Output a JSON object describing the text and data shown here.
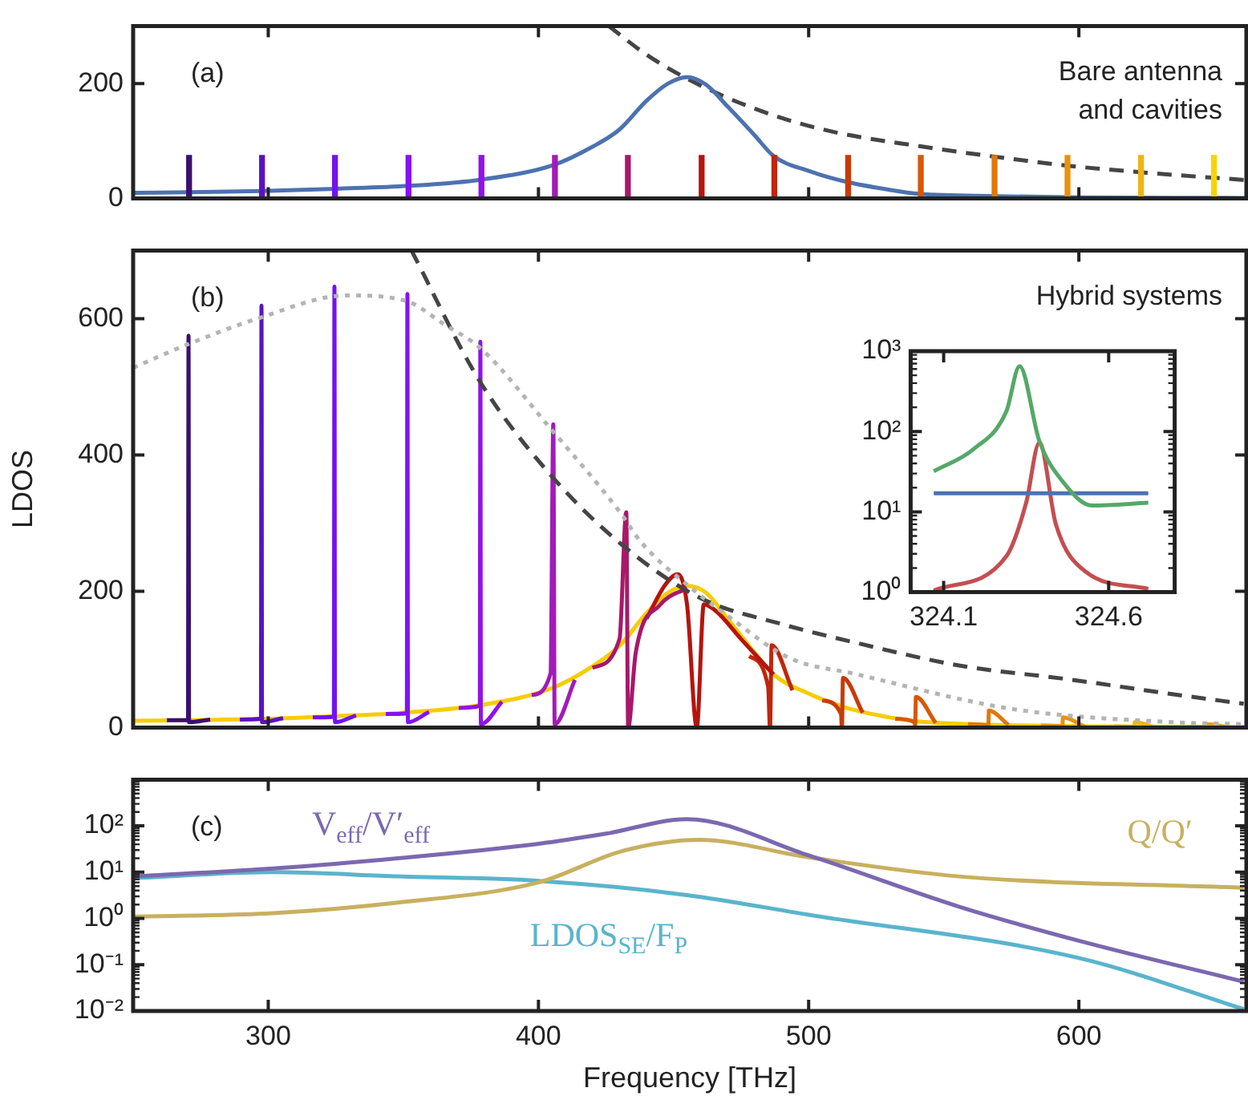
{
  "chart_data": [
    {
      "type": "line",
      "xlim": [
        250,
        662
      ],
      "xticks": [
        300,
        400,
        500,
        600
      ],
      "ylim": [
        0,
        300
      ],
      "yticks": [
        0,
        200
      ],
      "tick_labels": "y",
      "marker": "none",
      "annotations": [
        "(a)",
        "Bare antenna and cavities"
      ],
      "series": [
        {
          "type": "bar",
          "x": [
            270.7,
            297.7,
            324.7,
            351.9,
            378.9,
            406.1,
            433.1,
            460.4,
            487.3,
            514.6,
            541.5,
            568.8,
            595.8,
            623.0,
            650.0
          ],
          "values": [
            75,
            75,
            75,
            75,
            75,
            75,
            75,
            75,
            75,
            75,
            75,
            75,
            75,
            75,
            75
          ],
          "colors": [
            "#3b0f70",
            "#5b12c0",
            "#7412ee",
            "#8312f5",
            "#9212e8",
            "#a21bb8",
            "#a8186a",
            "#b5140e",
            "#c0260a",
            "#c93a06",
            "#d75806",
            "#e0780a",
            "#e8920e",
            "#f0b414",
            "#f7d400"
          ]
        },
        {
          "color": "#4c72b0",
          "x": [
            250,
            270,
            298,
            325,
            352,
            379,
            406,
            420,
            430,
            440,
            448,
            455,
            462,
            470,
            480,
            487,
            500,
            514,
            530,
            541,
            570,
            600,
            662
          ],
          "values": [
            10,
            11,
            13,
            17,
            22,
            33,
            59,
            90,
            120,
            170,
            200,
            211,
            198,
            160,
            110,
            74,
            48,
            29,
            15,
            8,
            4,
            2,
            1
          ]
        },
        {
          "color": "#454545",
          "line_style": "dashed",
          "x": [
            426,
            440,
            454,
            470,
            490,
            510,
            541,
            570,
            596,
            630,
            662
          ],
          "values": [
            300,
            250,
            211,
            175,
            140,
            115,
            91,
            72,
            57,
            43,
            32
          ]
        }
      ]
    },
    {
      "type": "line",
      "ylabel": "LDOS",
      "xlim": [
        250,
        662
      ],
      "xticks": [
        300,
        400,
        500,
        600
      ],
      "ylim": [
        0,
        700
      ],
      "yticks": [
        0,
        200,
        400,
        600
      ],
      "tick_labels": "y",
      "marker": "none",
      "annotations": [
        "(b)",
        "Hybrid systems"
      ],
      "series": [
        {
          "color": "#b4b4b4",
          "line_style": "dotted",
          "x": [
            250,
            270,
            296,
            329,
            351,
            365,
            379,
            404,
            430,
            438,
            458,
            468,
            493,
            517,
            576,
            635,
            662
          ],
          "values": [
            528,
            562,
            600,
            634,
            626,
            592,
            555,
            441,
            317,
            272,
            200,
            170,
            102,
            79,
            27,
            8,
            5
          ]
        },
        {
          "color": "#454545",
          "line_style": "dashed",
          "x": [
            353,
            378,
            404,
            431,
            460,
            490,
            517,
            556,
            596,
            635,
            661
          ],
          "values": [
            700,
            510,
            373,
            268,
            190,
            152,
            125,
            91,
            71,
            49,
            35
          ]
        },
        {
          "color": "#3b0f70",
          "x": [
            262.5,
            270.3,
            270.5,
            270.7,
            278.5
          ],
          "values": [
            11,
            11,
            575,
            8,
            12
          ]
        },
        {
          "color": "#5b12c0",
          "x": [
            289.5,
            297.3,
            297.5,
            297.7,
            305.5
          ],
          "values": [
            12,
            13,
            619,
            8,
            14
          ]
        },
        {
          "color": "#7412ee",
          "x": [
            316.5,
            324.3,
            324.5,
            324.7,
            332.5
          ],
          "values": [
            15,
            16,
            647,
            8,
            18
          ]
        },
        {
          "color": "#8312f5",
          "x": [
            343.5,
            351.3,
            351.5,
            351.7,
            359.5
          ],
          "values": [
            20,
            21,
            636,
            8,
            23
          ]
        },
        {
          "color": "#9212e8",
          "x": [
            370.5,
            378.3,
            378.5,
            378.7,
            386.5
          ],
          "values": [
            29,
            32,
            566,
            5,
            38
          ]
        },
        {
          "color": "#a21bb8",
          "x": [
            397.5,
            404.5,
            405.5,
            406,
            413.5
          ],
          "values": [
            48,
            80,
            445,
            5,
            70
          ]
        },
        {
          "color": "#a8186a",
          "x": [
            420,
            430,
            432.5,
            433.2,
            436,
            445,
            455
          ],
          "values": [
            88,
            130,
            316,
            0,
            110,
            180,
            205
          ]
        },
        {
          "color": "#b5140e",
          "x": [
            440,
            447,
            451.5,
            455,
            458.6,
            461.2,
            466,
            475,
            487
          ],
          "values": [
            160,
            210,
            225,
            180,
            0,
            181,
            170,
            130,
            78
          ]
        },
        {
          "color": "#c0260a",
          "x": [
            478,
            485,
            485.7,
            486.3,
            494
          ],
          "values": [
            105,
            60,
            0,
            121,
            55
          ]
        },
        {
          "color": "#c93a06",
          "x": [
            505,
            512,
            512.3,
            512.7,
            520
          ],
          "values": [
            40,
            20,
            0,
            73,
            22
          ]
        },
        {
          "color": "#d75806",
          "x": [
            532,
            539.2,
            539.4,
            539.7,
            547
          ],
          "values": [
            13,
            8,
            2,
            45,
            7
          ]
        },
        {
          "color": "#e0780a",
          "x": [
            559,
            566.3,
            566.5,
            566.7,
            574
          ],
          "values": [
            5,
            3,
            1,
            25,
            4
          ]
        },
        {
          "color": "#e8920e",
          "x": [
            586,
            593.7,
            593.9,
            594.1,
            602
          ],
          "values": [
            3,
            2,
            1,
            15,
            2
          ]
        },
        {
          "color": "#f0b414",
          "x": [
            613,
            620.3,
            620.5,
            620.7,
            628
          ],
          "values": [
            2,
            1,
            0,
            8,
            1
          ]
        },
        {
          "color": "#e8a010",
          "x": [
            640,
            647.3,
            647.5,
            647.7,
            655
          ],
          "values": [
            1,
            1,
            0,
            5,
            1
          ]
        },
        {
          "color": "#f7cc00",
          "x": [
            250,
            270,
            300,
            325,
            350,
            380,
            405,
            420,
            430,
            440,
            448,
            455,
            462,
            470,
            480,
            487,
            500,
            514,
            530,
            541,
            570,
            600,
            662
          ],
          "values": [
            10,
            11,
            13,
            17,
            22,
            34,
            58,
            90,
            120,
            168,
            198,
            208,
            198,
            160,
            110,
            78,
            50,
            29,
            15,
            9,
            4,
            2,
            1
          ]
        }
      ]
    },
    {
      "type": "line",
      "log": "y",
      "xlim": [
        324.0,
        324.8
      ],
      "xticks": [
        324.1,
        324.6
      ],
      "ylim": [
        1,
        1000
      ],
      "yticks": [
        {
          "value": 1,
          "label": "10⁰"
        },
        {
          "value": 10,
          "label": "10¹"
        },
        {
          "value": 100,
          "label": "10²"
        },
        {
          "value": 1000,
          "label": "10³"
        }
      ],
      "marker": "none",
      "series": [
        {
          "color": "#55a868",
          "x": [
            324.07,
            324.19,
            324.29,
            324.33,
            324.39,
            324.46,
            324.55,
            324.72
          ],
          "values": [
            32,
            60,
            178,
            650,
            76,
            24,
            12,
            13
          ]
        },
        {
          "color": "#4c72b0",
          "x": [
            324.07,
            324.72
          ],
          "values": [
            17,
            17
          ]
        },
        {
          "color": "#c44e52",
          "x": [
            324.07,
            324.29,
            324.35,
            324.39,
            324.44,
            324.53,
            324.72
          ],
          "values": [
            1.05,
            2.8,
            13,
            73,
            7,
            1.8,
            1.1
          ]
        }
      ]
    },
    {
      "type": "line",
      "log": "y",
      "xlabel": "Frequency [THz]",
      "xlim": [
        250,
        662
      ],
      "xticks": [
        300,
        400,
        500,
        600
      ],
      "ylim": [
        0.01,
        1000
      ],
      "yticks": [
        {
          "value": 0.01,
          "label": "10⁻²"
        },
        {
          "value": 0.1,
          "label": "10⁻¹"
        },
        {
          "value": 1,
          "label": "10⁰"
        },
        {
          "value": 10,
          "label": "10¹"
        },
        {
          "value": 100,
          "label": "10²"
        }
      ],
      "marker": "none",
      "annotations": [
        "(c)"
      ],
      "series": [
        {
          "name": "V$_{eff}$/V′$_{eff}$",
          "color": "#7b68b0",
          "x": [
            250,
            301.6,
            348,
            400,
            425,
            455,
            500,
            555.6,
            600,
            661
          ],
          "values": [
            8.1,
            12,
            20,
            41,
            68,
            140,
            23,
            1.8,
            0.33,
            0.043
          ]
        },
        {
          "name": "Q/Q′",
          "color": "#c8b060",
          "x": [
            250,
            301.6,
            348,
            400,
            431.4,
            459.5,
            500,
            555.6,
            661
          ],
          "values": [
            1.1,
            1.3,
            2.2,
            6,
            29,
            50,
            21,
            8.1,
            4.6
          ]
        },
        {
          "name": "LDOS$_{SE}$/F$_{P}$",
          "color": "#5ab4cc",
          "x": [
            250,
            301.6,
            348,
            400,
            455,
            500,
            600,
            661
          ],
          "values": [
            7.4,
            10,
            8.1,
            6.5,
            3.2,
            1.2,
            0.14,
            0.011
          ]
        }
      ]
    }
  ]
}
